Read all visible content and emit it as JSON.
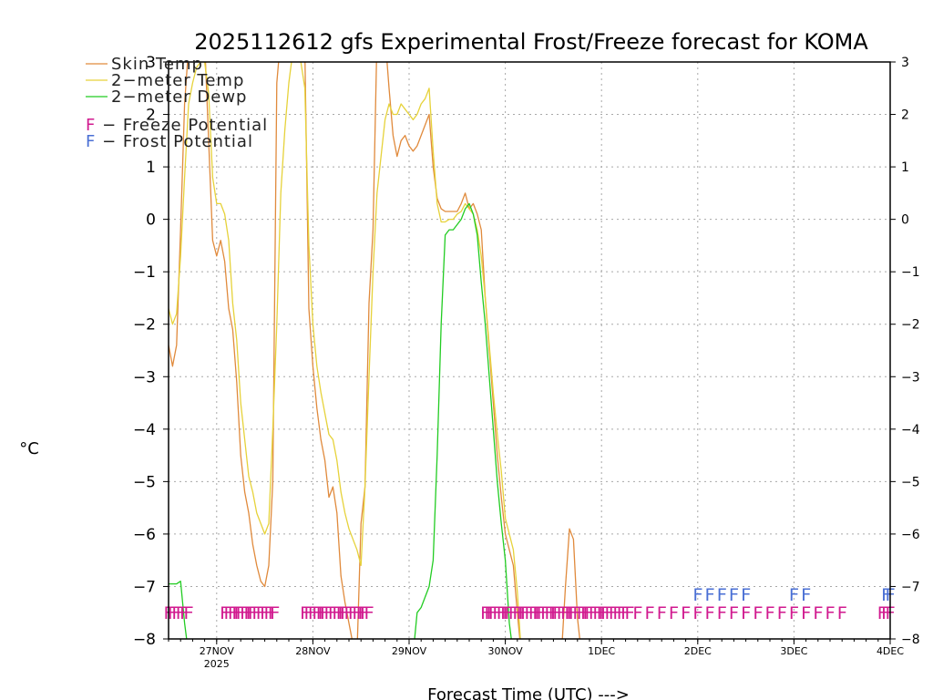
{
  "chart_data": {
    "type": "line",
    "title": "2025112612 gfs Experimental Frost/Freeze forecast for KOMA",
    "ylabel": "°C",
    "xlabel": "Forecast Time (UTC) --->",
    "ylim": [
      -8,
      3
    ],
    "xlim": [
      0,
      180
    ],
    "x_unit": "forecast hours from 2025-11-26 12Z",
    "y_ticks": [
      -8,
      -7,
      -6,
      -5,
      -4,
      -3,
      -2,
      -1,
      0,
      1,
      2,
      3
    ],
    "y_tick_labels": [
      "−8",
      "−7",
      "−6",
      "−5",
      "−4",
      "−3",
      "−2",
      "−1",
      "0",
      "1",
      "2",
      "3"
    ],
    "x_ticks": [
      {
        "x": 12,
        "label": "27NOV",
        "sublabel": "2025"
      },
      {
        "x": 36,
        "label": "28NOV"
      },
      {
        "x": 60,
        "label": "29NOV"
      },
      {
        "x": 84,
        "label": "30NOV"
      },
      {
        "x": 108,
        "label": "1DEC"
      },
      {
        "x": 132,
        "label": "2DEC"
      },
      {
        "x": 156,
        "label": "3DEC"
      },
      {
        "x": 180,
        "label": "4DEC"
      }
    ],
    "series": [
      {
        "name": "Skin Temp",
        "label": "Skin Temp",
        "color": "#e08a3c",
        "points": [
          [
            0,
            -2.4
          ],
          [
            1,
            -2.8
          ],
          [
            2,
            -2.4
          ],
          [
            3,
            -0.2
          ],
          [
            4,
            2.2
          ],
          [
            5,
            3.3
          ],
          [
            6,
            3.3
          ],
          [
            7,
            3.4
          ],
          [
            8,
            3.4
          ],
          [
            9,
            3.4
          ],
          [
            10,
            1.5
          ],
          [
            11,
            -0.4
          ],
          [
            12,
            -0.7
          ],
          [
            13,
            -0.4
          ],
          [
            14,
            -0.8
          ],
          [
            15,
            -1.7
          ],
          [
            16,
            -2.1
          ],
          [
            17,
            -3.1
          ],
          [
            18,
            -4.5
          ],
          [
            19,
            -5.2
          ],
          [
            20,
            -5.6
          ],
          [
            21,
            -6.2
          ],
          [
            22,
            -6.6
          ],
          [
            23,
            -6.9
          ],
          [
            24,
            -7.0
          ],
          [
            25,
            -6.6
          ],
          [
            26,
            -5.0
          ],
          [
            27,
            2.6
          ],
          [
            28,
            3.5
          ],
          [
            29,
            3.5
          ],
          [
            30,
            3.5
          ],
          [
            31,
            3.5
          ],
          [
            32,
            3.5
          ],
          [
            33,
            3.5
          ],
          [
            34,
            3.2
          ],
          [
            35,
            -1.7
          ],
          [
            36,
            -2.8
          ],
          [
            37,
            -3.6
          ],
          [
            38,
            -4.2
          ],
          [
            39,
            -4.6
          ],
          [
            40,
            -5.3
          ],
          [
            41,
            -5.1
          ],
          [
            42,
            -5.6
          ],
          [
            43,
            -6.8
          ],
          [
            44,
            -7.3
          ],
          [
            45,
            -7.7
          ],
          [
            46,
            -8.1
          ],
          [
            47,
            -8.3
          ],
          [
            48,
            -5.8
          ],
          [
            49,
            -5.1
          ],
          [
            50,
            -1.6
          ],
          [
            51,
            -0.2
          ],
          [
            52,
            3.5
          ],
          [
            53,
            3.5
          ],
          [
            54,
            3.5
          ],
          [
            55,
            2.5
          ],
          [
            56,
            1.6
          ],
          [
            57,
            1.2
          ],
          [
            58,
            1.5
          ],
          [
            59,
            1.6
          ],
          [
            60,
            1.4
          ],
          [
            61,
            1.3
          ],
          [
            62,
            1.4
          ],
          [
            63,
            1.6
          ],
          [
            64,
            1.8
          ],
          [
            65,
            2.0
          ],
          [
            66,
            1.0
          ],
          [
            67,
            0.4
          ],
          [
            68,
            0.2
          ],
          [
            69,
            0.15
          ],
          [
            70,
            0.15
          ],
          [
            71,
            0.15
          ],
          [
            72,
            0.15
          ],
          [
            73,
            0.3
          ],
          [
            74,
            0.5
          ],
          [
            75,
            0.2
          ],
          [
            76,
            0.3
          ],
          [
            77,
            0.1
          ],
          [
            78,
            -0.2
          ],
          [
            79,
            -1.5
          ],
          [
            80,
            -2.5
          ],
          [
            81,
            -3.5
          ],
          [
            82,
            -4.5
          ],
          [
            83,
            -5.3
          ],
          [
            84,
            -6.0
          ],
          [
            85,
            -6.3
          ],
          [
            86,
            -6.6
          ],
          [
            87,
            -7.5
          ],
          [
            88,
            -8.3
          ],
          [
            98,
            -8.3
          ],
          [
            99,
            -7.0
          ],
          [
            100,
            -5.9
          ],
          [
            101,
            -6.1
          ],
          [
            102,
            -7.6
          ],
          [
            103,
            -8.3
          ]
        ]
      },
      {
        "name": "2-meter Temp",
        "label": "2−meter Temp",
        "color": "#e6d23a",
        "points": [
          [
            0,
            -1.7
          ],
          [
            1,
            -2.0
          ],
          [
            2,
            -1.8
          ],
          [
            3,
            -0.7
          ],
          [
            4,
            0.8
          ],
          [
            5,
            2.2
          ],
          [
            6,
            2.6
          ],
          [
            7,
            2.9
          ],
          [
            8,
            3.0
          ],
          [
            9,
            3.0
          ],
          [
            10,
            2.4
          ],
          [
            11,
            0.8
          ],
          [
            12,
            0.3
          ],
          [
            13,
            0.3
          ],
          [
            14,
            0.1
          ],
          [
            15,
            -0.4
          ],
          [
            16,
            -1.6
          ],
          [
            17,
            -2.3
          ],
          [
            18,
            -3.5
          ],
          [
            19,
            -4.2
          ],
          [
            20,
            -4.9
          ],
          [
            21,
            -5.2
          ],
          [
            22,
            -5.6
          ],
          [
            23,
            -5.8
          ],
          [
            24,
            -6.0
          ],
          [
            25,
            -5.8
          ],
          [
            26,
            -4.0
          ],
          [
            27,
            -2.0
          ],
          [
            28,
            0.5
          ],
          [
            29,
            1.7
          ],
          [
            30,
            2.6
          ],
          [
            31,
            3.2
          ],
          [
            32,
            3.2
          ],
          [
            33,
            3.0
          ],
          [
            34,
            2.5
          ],
          [
            35,
            -0.5
          ],
          [
            36,
            -2.0
          ],
          [
            37,
            -2.8
          ],
          [
            38,
            -3.3
          ],
          [
            39,
            -3.7
          ],
          [
            40,
            -4.1
          ],
          [
            41,
            -4.2
          ],
          [
            42,
            -4.6
          ],
          [
            43,
            -5.2
          ],
          [
            44,
            -5.6
          ],
          [
            45,
            -5.9
          ],
          [
            46,
            -6.1
          ],
          [
            47,
            -6.3
          ],
          [
            48,
            -6.6
          ],
          [
            49,
            -5.1
          ],
          [
            50,
            -3.0
          ],
          [
            51,
            -1.0
          ],
          [
            52,
            0.5
          ],
          [
            53,
            1.2
          ],
          [
            54,
            1.9
          ],
          [
            55,
            2.2
          ],
          [
            56,
            2.0
          ],
          [
            57,
            2.0
          ],
          [
            58,
            2.2
          ],
          [
            59,
            2.1
          ],
          [
            60,
            2.0
          ],
          [
            61,
            1.9
          ],
          [
            62,
            2.0
          ],
          [
            63,
            2.2
          ],
          [
            64,
            2.3
          ],
          [
            65,
            2.5
          ],
          [
            66,
            1.3
          ],
          [
            67,
            0.3
          ],
          [
            68,
            -0.05
          ],
          [
            69,
            -0.05
          ],
          [
            70,
            0.0
          ],
          [
            71,
            0.0
          ],
          [
            72,
            0.1
          ],
          [
            73,
            0.15
          ],
          [
            74,
            0.3
          ],
          [
            75,
            0.2
          ],
          [
            76,
            0.1
          ],
          [
            77,
            -0.2
          ],
          [
            78,
            -0.7
          ],
          [
            79,
            -1.5
          ],
          [
            80,
            -2.4
          ],
          [
            81,
            -3.3
          ],
          [
            82,
            -4.1
          ],
          [
            83,
            -4.8
          ],
          [
            84,
            -5.7
          ],
          [
            85,
            -6.0
          ],
          [
            86,
            -6.3
          ],
          [
            87,
            -7.1
          ],
          [
            88,
            -8.3
          ],
          [
            103,
            -8.3
          ]
        ]
      },
      {
        "name": "2-meter Dewp",
        "label": "2−meter Dewp",
        "color": "#22cc22",
        "points": [
          [
            0,
            -6.95
          ],
          [
            1,
            -6.95
          ],
          [
            2,
            -6.95
          ],
          [
            3,
            -6.9
          ],
          [
            4,
            -7.7
          ],
          [
            5,
            -8.3
          ],
          [
            61,
            -8.3
          ],
          [
            62,
            -7.5
          ],
          [
            63,
            -7.4
          ],
          [
            64,
            -7.2
          ],
          [
            65,
            -7.0
          ],
          [
            66,
            -6.5
          ],
          [
            67,
            -4.5
          ],
          [
            68,
            -2.0
          ],
          [
            69,
            -0.3
          ],
          [
            70,
            -0.2
          ],
          [
            71,
            -0.2
          ],
          [
            72,
            -0.1
          ],
          [
            73,
            0.0
          ],
          [
            74,
            0.2
          ],
          [
            75,
            0.3
          ],
          [
            76,
            0.1
          ],
          [
            77,
            -0.3
          ],
          [
            78,
            -1.2
          ],
          [
            79,
            -2.0
          ],
          [
            80,
            -3.0
          ],
          [
            81,
            -4.0
          ],
          [
            82,
            -5.0
          ],
          [
            83,
            -5.8
          ],
          [
            84,
            -6.5
          ],
          [
            85,
            -7.7
          ],
          [
            86,
            -8.3
          ]
        ]
      }
    ],
    "potential_markers": [
      {
        "name": "Freeze Potential",
        "letter": "F",
        "color": "#d11a8f",
        "hours": [
          0,
          1,
          2,
          3,
          4,
          5,
          14,
          15,
          16,
          17,
          17.5,
          18,
          19,
          20,
          20.5,
          21,
          22,
          23,
          24,
          25,
          26,
          26.5,
          34,
          35,
          36,
          37,
          38,
          38.5,
          39,
          40,
          41,
          42,
          43,
          43.5,
          44,
          45,
          46,
          47,
          48,
          48.5,
          49,
          50,
          79,
          80,
          80.5,
          81,
          82,
          83,
          84,
          84.5,
          85,
          86,
          87,
          88,
          88.5,
          89,
          90,
          91,
          92,
          92.5,
          93,
          94,
          95,
          96,
          96.5,
          97,
          98,
          99,
          100,
          100.5,
          101,
          102,
          103,
          104,
          104.5,
          105,
          106,
          107,
          108,
          108.5,
          109,
          110,
          111,
          112,
          113,
          114,
          115,
          117,
          120,
          123,
          126,
          129,
          132,
          135,
          138,
          141,
          144,
          147,
          150,
          153,
          156,
          159,
          162,
          165,
          168,
          178,
          179,
          180
        ]
      },
      {
        "name": "Frost Potential",
        "letter": "F",
        "color": "#4a6fd4",
        "hours": [
          132,
          135,
          138,
          141,
          144,
          156,
          159,
          179,
          180
        ]
      }
    ],
    "legend": {
      "placement": "top-left",
      "items": [
        {
          "label": "Skin Temp",
          "color": "#e08a3c"
        },
        {
          "label": "2−meter Temp",
          "color": "#e6d23a"
        },
        {
          "label": "2−meter Dewp",
          "color": "#22cc22"
        }
      ],
      "markers": [
        {
          "letter": "F",
          "text": " − Freeze Potential",
          "color": "#d11a8f"
        },
        {
          "letter": "F",
          "text": " − Frost Potential",
          "color": "#4a6fd4"
        }
      ]
    },
    "grid": true
  }
}
